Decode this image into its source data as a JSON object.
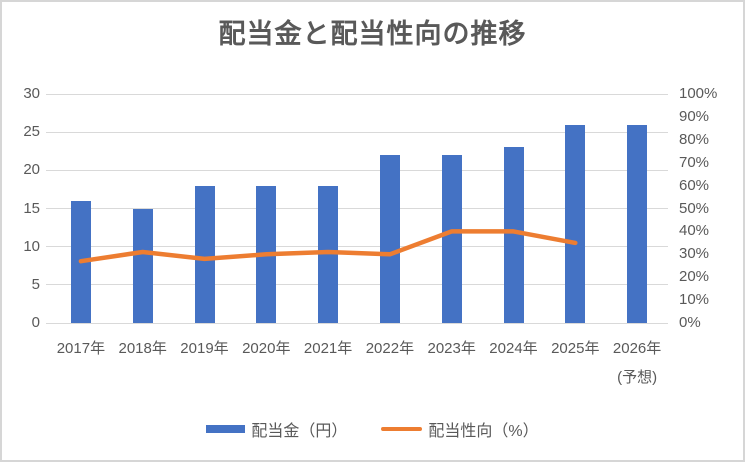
{
  "chart_data": {
    "type": "bar+line",
    "title": "配当金と配当性向の推移",
    "categories": [
      "2017年",
      "2018年",
      "2019年",
      "2020年",
      "2021年",
      "2022年",
      "2023年",
      "2024年",
      "2025年",
      "2026年"
    ],
    "x_axis_note": "(予想)",
    "x_axis_note_category": "2026年",
    "series": [
      {
        "name": "配当金（円）",
        "type": "bar",
        "axis": "left",
        "color": "#4472c4",
        "values": [
          16,
          15,
          18,
          18,
          18,
          22,
          22,
          23,
          26,
          26
        ]
      },
      {
        "name": "配当性向（%）",
        "type": "line",
        "axis": "right",
        "color": "#ed7d31",
        "values": [
          27,
          31,
          28,
          30,
          31,
          30,
          40,
          40,
          35,
          null
        ]
      }
    ],
    "left_axis": {
      "min": 0,
      "max": 30,
      "step": 5,
      "tick_labels": [
        "0",
        "5",
        "10",
        "15",
        "20",
        "25",
        "30"
      ]
    },
    "right_axis": {
      "min": 0,
      "max": 100,
      "step": 10,
      "tick_labels": [
        "0%",
        "10%",
        "20%",
        "30%",
        "40%",
        "50%",
        "60%",
        "70%",
        "80%",
        "90%",
        "100%"
      ]
    },
    "grid": true,
    "legend_position": "bottom",
    "colors": {
      "bar": "#4472c4",
      "line": "#ed7d31",
      "gridline": "#d9d9d9",
      "axis_text": "#595959",
      "title_text": "#595959",
      "frame_border": "#d6d6d6",
      "background": "#ffffff"
    }
  }
}
